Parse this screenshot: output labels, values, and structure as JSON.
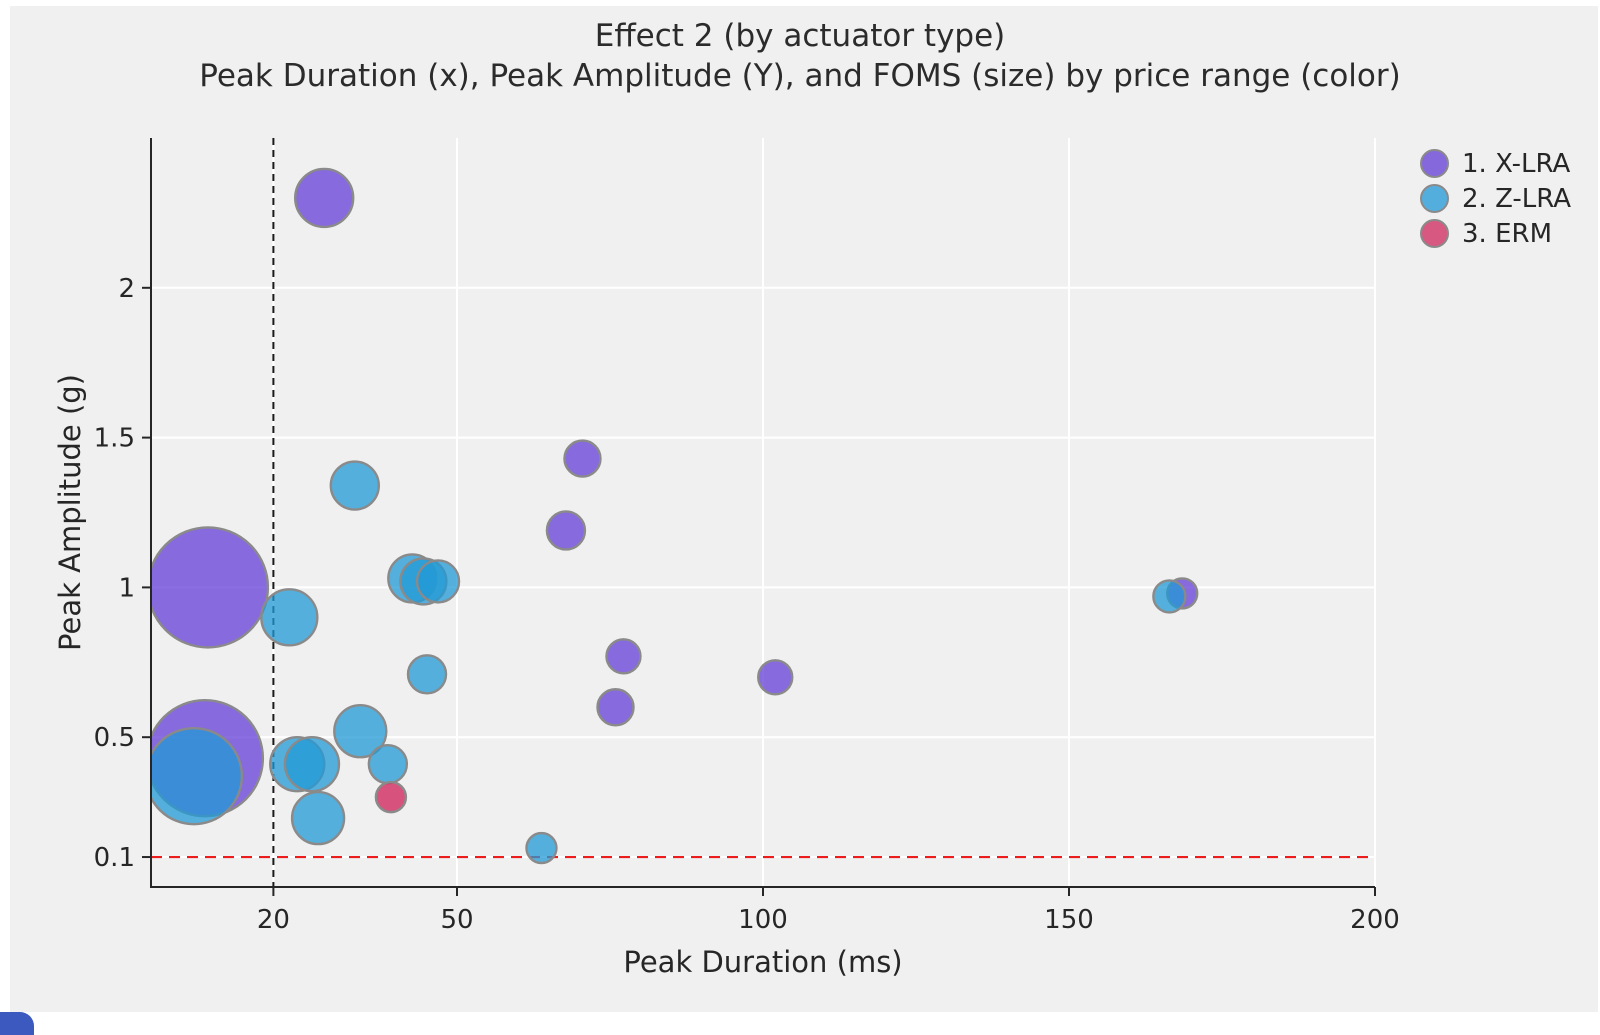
{
  "title": "Effect 2 (by actuator type)",
  "subtitle": "Peak Duration (x), Peak Amplitude (Y), and FOMS (size) by price range (color)",
  "chart_data": {
    "type": "scatter",
    "variant": "bubble",
    "title": "Effect 2 (by actuator type)",
    "subtitle": "Peak Duration (x), Peak Amplitude (Y), and FOMS (size) by price range (color)",
    "xlabel": "Peak Duration (ms)",
    "ylabel": "Peak Amplitude (g)",
    "xlim": [
      0,
      200
    ],
    "ylim": [
      0,
      2.5
    ],
    "x_ticks": [
      20,
      50,
      100,
      150,
      200
    ],
    "y_ticks": [
      0.1,
      0.5,
      1,
      1.5,
      2
    ],
    "grid": true,
    "grid_color": "#ffffff",
    "background": "#f0f0f0",
    "legend_position": "upper right outside",
    "size_note": "r is bubble radius in px (FOMS size encoding)",
    "reference_lines": [
      {
        "axis": "x",
        "value": 20,
        "color": "#1a1a1a",
        "dash": "7 5",
        "width": 2
      },
      {
        "axis": "y",
        "value": 0.1,
        "color": "#ed1c1c",
        "dash": "11 7",
        "width": 2.2
      }
    ],
    "series": [
      {
        "name": "1. X-LRA",
        "legend_color": "#8568dc",
        "fill": "rgba(100,61,215,0.75)",
        "stroke": "#8a8a8a",
        "points": [
          {
            "x": 28.3,
            "y": 2.3,
            "r": 29
          },
          {
            "x": 9.3,
            "y": 1.0,
            "r": 60
          },
          {
            "x": 8.8,
            "y": 0.43,
            "r": 58
          },
          {
            "x": 70.5,
            "y": 1.43,
            "r": 18
          },
          {
            "x": 67.8,
            "y": 1.19,
            "r": 19
          },
          {
            "x": 77.2,
            "y": 0.77,
            "r": 17
          },
          {
            "x": 75.9,
            "y": 0.6,
            "r": 18
          },
          {
            "x": 102.0,
            "y": 0.7,
            "r": 17
          },
          {
            "x": 168.5,
            "y": 0.98,
            "r": 15
          }
        ]
      },
      {
        "name": "2. Z-LRA",
        "legend_color": "#54aedd",
        "fill": "rgba(33,153,213,0.75)",
        "stroke": "#8a8a8a",
        "points": [
          {
            "x": 7.0,
            "y": 0.37,
            "r": 48
          },
          {
            "x": 22.6,
            "y": 0.9,
            "r": 28
          },
          {
            "x": 33.3,
            "y": 1.34,
            "r": 24
          },
          {
            "x": 42.7,
            "y": 1.03,
            "r": 24
          },
          {
            "x": 44.5,
            "y": 1.02,
            "r": 23
          },
          {
            "x": 46.9,
            "y": 1.02,
            "r": 21
          },
          {
            "x": 45.1,
            "y": 0.71,
            "r": 19
          },
          {
            "x": 34.2,
            "y": 0.52,
            "r": 26
          },
          {
            "x": 23.9,
            "y": 0.41,
            "r": 27
          },
          {
            "x": 26.3,
            "y": 0.41,
            "r": 27
          },
          {
            "x": 38.7,
            "y": 0.41,
            "r": 19
          },
          {
            "x": 27.3,
            "y": 0.23,
            "r": 26
          },
          {
            "x": 63.8,
            "y": 0.13,
            "r": 15
          },
          {
            "x": 166.4,
            "y": 0.97,
            "r": 16
          }
        ]
      },
      {
        "name": "3. ERM",
        "legend_color": "#d75880",
        "fill": "rgba(207,37,91,0.78)",
        "stroke": "#8a8a8a",
        "points": [
          {
            "x": 39.2,
            "y": 0.3,
            "r": 15
          }
        ]
      }
    ]
  }
}
